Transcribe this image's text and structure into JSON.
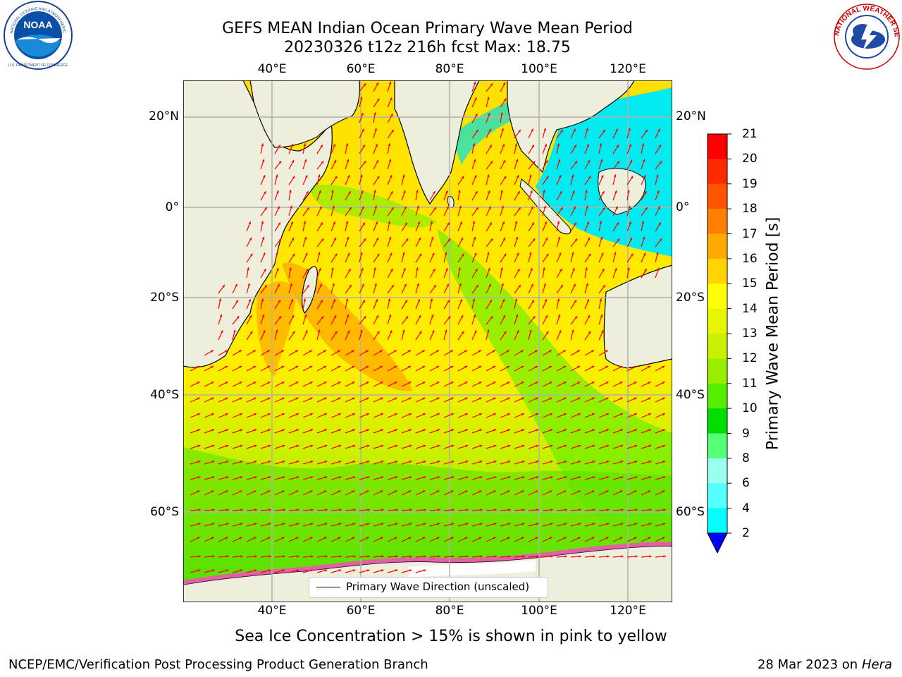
{
  "header": {
    "title_line1": "GEFS MEAN Indian Ocean Primary Wave Mean Period",
    "title_line2": "20230326 t12z 216h fcst   Max: 18.75"
  },
  "logos": {
    "left": {
      "name": "NOAA",
      "ring_text": "NATIONAL OCEANIC AND ATMOSPHERIC ADMINISTRATION",
      "bottom_text": "U.S. DEPARTMENT OF COMMERCE"
    },
    "right": {
      "ring_text": "NATIONAL WEATHER SERVICE"
    }
  },
  "map": {
    "lon_ticks": [
      "40°E",
      "60°E",
      "80°E",
      "100°E",
      "120°E"
    ],
    "lat_ticks": [
      "20°N",
      "0°",
      "20°S",
      "40°S",
      "60°S"
    ],
    "legend_label": "Primary Wave Direction (unscaled)",
    "colors": {
      "ocean_main": "#ffe800",
      "land": "#eeeedd",
      "grid": "#b0b0b0",
      "arrow": "#ff0000"
    }
  },
  "colorbar": {
    "label": "Primary Wave Mean Period [s]",
    "ticks": [
      "21",
      "20",
      "19",
      "18",
      "17",
      "16",
      "15",
      "14",
      "13",
      "12",
      "11",
      "10",
      "9",
      "8",
      "6",
      "4",
      "2"
    ],
    "colors": [
      "#ff0000",
      "#ff2a00",
      "#ff5500",
      "#ff8000",
      "#ffaa00",
      "#ffd400",
      "#ffff00",
      "#e6f500",
      "#c8f000",
      "#99ee00",
      "#55ee00",
      "#00dd00",
      "#55ff77",
      "#99ffee",
      "#55ffff",
      "#00ffff",
      "#0088ff",
      "#0000ff"
    ]
  },
  "note": "Sea Ice Concentration > 15% is shown in pink to yellow",
  "footer": {
    "left": "NCEP/EMC/Verification Post Processing Product Generation Branch",
    "right_date": "28 Mar 2023 on",
    "right_host": "Hera"
  }
}
